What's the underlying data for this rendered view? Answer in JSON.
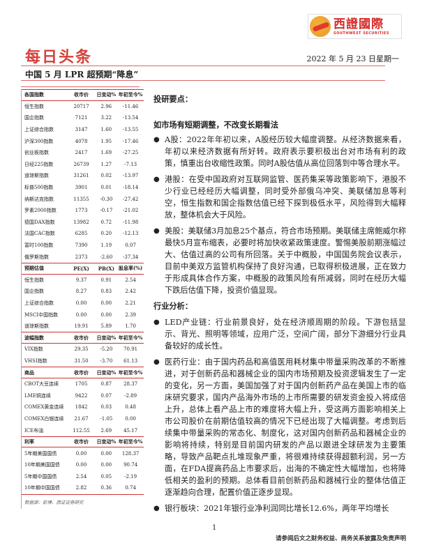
{
  "logo": {
    "cn": "西證國際",
    "en": "SOUTHWEST SECURITIES"
  },
  "header": {
    "headline": "每日头条",
    "date": "2022 年 5 月 23 日星期一",
    "title": "中国 5 月 LPR 超预期“降息”"
  },
  "table": {
    "sections": [
      {
        "header": [
          "各国指数",
          "收市价",
          "日变动%",
          "年初至今%"
        ],
        "rows": [
          [
            "恒生指数",
            "20717",
            "2.96",
            "-11.46"
          ],
          [
            "国企指数",
            "7121",
            "3.22",
            "-13.54"
          ],
          [
            "上证综合指数",
            "3147",
            "1.60",
            "-13.55"
          ],
          [
            "沪深300指数",
            "4078",
            "1.95",
            "-17.46"
          ],
          [
            "创业板指数",
            "2417",
            "1.69",
            "-27.25"
          ],
          [
            "日经225指数",
            "26739",
            "1.27",
            "-7.13"
          ],
          [
            "道琼斯指数",
            "31261",
            "0.02",
            "-13.97"
          ],
          [
            "标普500指数",
            "3901",
            "0.01",
            "-18.14"
          ],
          [
            "纳斯达克指数",
            "11355",
            "-0.30",
            "-27.42"
          ],
          [
            "罗素2000指数",
            "1773",
            "-0.17",
            "-21.02"
          ],
          [
            "德国DAX指数",
            "13982",
            "0.72",
            "-11.98"
          ],
          [
            "法国CAC指数",
            "6285",
            "0.20",
            "-12.13"
          ],
          [
            "富时100指数",
            "7390",
            "1.19",
            "0.07"
          ],
          [
            "俄罗斯指数",
            "2373",
            "-2.60",
            "-37.34"
          ]
        ]
      },
      {
        "header": [
          "预期估值",
          "PE(X)",
          "PB(X)",
          "股息率(%)"
        ],
        "rows": [
          [
            "恒生指数",
            "9.37",
            "0.91",
            "2.54"
          ],
          [
            "国企指数",
            "8.27",
            "0.83",
            "2.42"
          ],
          [
            "上证综合指数",
            "0.00",
            "0.00",
            "2.21"
          ],
          [
            "MSCI中国指数",
            "0.00",
            "0.00",
            "2.39"
          ],
          [
            "道琼斯指数",
            "19.91",
            "5.89",
            "1.70"
          ]
        ]
      },
      {
        "header": [
          "波幅指数",
          "收市价",
          "日变动%",
          "年初至今%"
        ],
        "rows": [
          [
            "VIX指数",
            "29.35",
            "-5.20",
            "70.91"
          ],
          [
            "VHSI指数",
            "31.50",
            "-3.70",
            "61.13"
          ]
        ]
      },
      {
        "header": [
          "商品",
          "收市价",
          "日变动%",
          "年初至今%"
        ],
        "rows": [
          [
            "CBOT大豆连续",
            "1705",
            "0.87",
            "28.37"
          ],
          [
            "LME铜连续",
            "9422",
            "0.07",
            "-2.89"
          ],
          [
            "COMEX黄金连续",
            "1842",
            "0.03",
            "0.48"
          ],
          [
            "COMEX白银连续",
            "21.67",
            "-1.05",
            "0.00"
          ],
          [
            "ICE布油",
            "112.55",
            "2.69",
            "45.17"
          ]
        ]
      },
      {
        "header": [
          "利率",
          "收市价",
          "日变动%",
          "年初至今%"
        ],
        "rows": [
          [
            "5年期美国国债",
            "0.00",
            "0.00",
            "128.37"
          ],
          [
            "10年期美国国债",
            "0.00",
            "0.00",
            "90.74"
          ],
          [
            "5年期中国国债",
            "2.54",
            "0.05",
            "-2.19"
          ],
          [
            "10年期中国国债",
            "2.82",
            "0.36",
            "0.74"
          ]
        ]
      }
    ],
    "source": "数据源：彭博、西证证券研究"
  },
  "main": {
    "heading": "投研要点：",
    "section1": "如市场有短期调整，不改变长期看法",
    "bullets1": [
      "A股：2022年年初以来，A股经历较大幅度调整。从经济数据来看，年初以来经济数据有所好转。政府表示要积极出台对市场有利的政策，慎重出台收缩性政策。同时A股估值从高位回落到中等合理水平。",
      "港股：在受中国政府对互联网监管、医药集采等政策影响下，港股不少行业已经经历大幅调整，同时受外部俄乌冲突、美联储加息等利空，恒生指数和国企指数估值已经下探到极低水平，风险得到大幅释放，整体机会大于风险。",
      "美股：美联储3月加息25个基点，符合市场预期。美联储主席鲍威尔称最快5月宣布缩表，必要时将加快收紧政策速度。警惕美股前期涨幅过大、估值过高的公司有所回落。关于中概股，中国国务院会议表示，目前中美双方监管机构保持了良好沟通，已取得积极进展，正在致力于形成具体合作方案，中概股的政策风险有所减弱，同时在经历大幅下跌后估值下降，投资价值显现。"
    ],
    "section2": "行业分析：",
    "bullets2": [
      "LED产业链：行业前景良好，处在经济顺周期的阶段。下游包括显示、背光、照明等领域，应用广泛，空间广阔，部分下游细分行业具备较好的成长性。",
      "医药行业：由于国内药品和高值医用耗材集中带量采购改革的不断推进，对于创新药品和器械企业的国内市场预期及投资逻辑发生了一定的变化，另一方面，美国加强了对于国内创新药产品在美国上市的临床研究要求，国内产品海外市场的上市所需要的研发资金投入将成倍上升，总体上看产品上市的难度将大幅上升，受这两方面影响相关上市公司股价在前期估值较高的情况下已经出现了大幅调整。考虑到后续集中带量采购的常态化、制度化，这对国内创新药品和器械企业的影响将持续，特别是目前国内研发的产品以跟进全球研发为主要策略，导致产品靶点扎堆现象严重，将很难持续获得超额利润，另一方面，在FDA提高药品上市要求后，出海的不确定性大幅增加，也将降低相关的盈利的预期。总体看目前创新药品和器械行业的整体估值正逐渐趋向合理，配置价值正逐步显现。",
      "银行板块：2021年银行业净利润同比增长12.6%，两年平均增长"
    ]
  },
  "footer": {
    "page": "1",
    "disclaimer": "请参阅后文之财务权益、商务关系披露及免责声明"
  }
}
